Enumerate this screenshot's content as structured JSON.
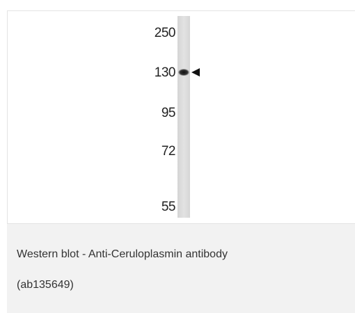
{
  "figure": {
    "markers": [
      "250",
      "130",
      "95",
      "72",
      "55"
    ]
  },
  "caption": {
    "lines": [
      "Western blot - Anti-Ceruloplasmin antibody",
      "(ab135649)"
    ]
  }
}
